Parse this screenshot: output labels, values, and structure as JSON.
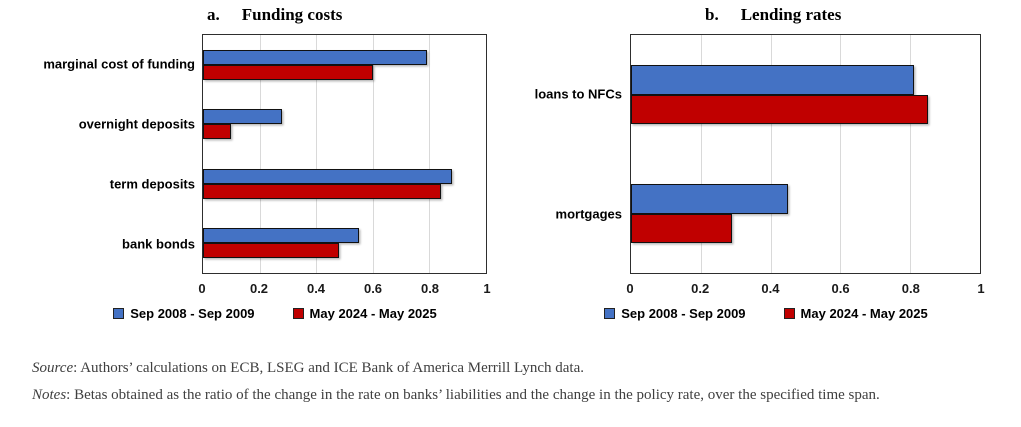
{
  "chart_data": [
    {
      "type": "bar",
      "orientation": "horizontal",
      "title_prefix": "a.",
      "title": "Funding costs",
      "categories": [
        "marginal cost of funding",
        "overnight deposits",
        "term deposits",
        "bank bonds"
      ],
      "series": [
        {
          "name": "Sep 2008 - Sep 2009",
          "color": "#4472C4",
          "values": [
            0.79,
            0.28,
            0.88,
            0.55
          ]
        },
        {
          "name": "May 2024 - May 2025",
          "color": "#C00000",
          "values": [
            0.6,
            0.1,
            0.84,
            0.48
          ]
        }
      ],
      "xlim": [
        0,
        1
      ],
      "xticks": [
        0,
        0.2,
        0.4,
        0.6,
        0.8,
        1
      ],
      "xtick_labels": [
        "0",
        "0.2",
        "0.4",
        "0.6",
        "0.8",
        "1"
      ],
      "grid": true,
      "legend_position": "bottom"
    },
    {
      "type": "bar",
      "orientation": "horizontal",
      "title_prefix": "b.",
      "title": "Lending rates",
      "categories": [
        "loans to NFCs",
        "mortgages"
      ],
      "series": [
        {
          "name": "Sep 2008 - Sep 2009",
          "color": "#4472C4",
          "values": [
            0.81,
            0.45
          ]
        },
        {
          "name": "May 2024 - May 2025",
          "color": "#C00000",
          "values": [
            0.85,
            0.29
          ]
        }
      ],
      "xlim": [
        0,
        1
      ],
      "xticks": [
        0,
        0.2,
        0.4,
        0.6,
        0.8,
        1
      ],
      "xtick_labels": [
        "0",
        "0.2",
        "0.4",
        "0.6",
        "0.8",
        "1"
      ],
      "grid": true,
      "legend_position": "bottom"
    }
  ],
  "footer": {
    "source_label": "Source",
    "source_text": ": Authors’ calculations on ECB, LSEG and ICE Bank of America Merrill Lynch data.",
    "notes_label": "Notes",
    "notes_text": ": Betas obtained as the ratio of the change in the rate on banks’ liabilities and the change in the policy rate, over the specified time span."
  }
}
